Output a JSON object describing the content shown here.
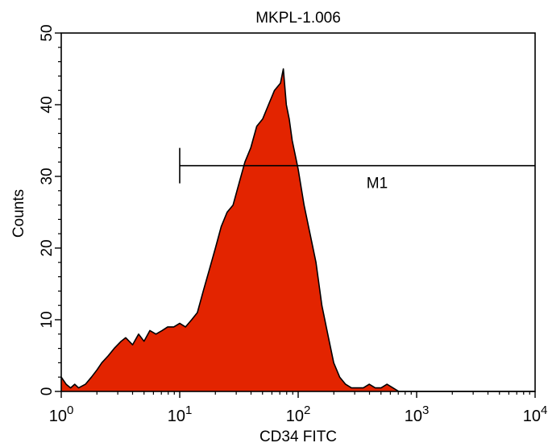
{
  "chart_data": {
    "type": "histogram",
    "title": "MKPL-1.006",
    "xlabel": "CD34 FITC",
    "ylabel": "Counts",
    "x_scale": "log",
    "xlim": [
      1,
      10000
    ],
    "ylim": [
      0,
      50
    ],
    "grid": false,
    "fill_color": "#e32400",
    "outline_color": "#000000",
    "x_tick_labels": [
      {
        "base": "10",
        "exp": "0"
      },
      {
        "base": "10",
        "exp": "1"
      },
      {
        "base": "10",
        "exp": "2"
      },
      {
        "base": "10",
        "exp": "3"
      },
      {
        "base": "10",
        "exp": "4"
      }
    ],
    "y_ticks": [
      0,
      10,
      20,
      30,
      40,
      50
    ],
    "y_tick_labels": [
      "0",
      "10",
      "20",
      "30",
      "40",
      "50"
    ],
    "marker": {
      "label": "M1",
      "x_start": 10,
      "x_end": 10000,
      "y": 31.5
    },
    "series": [
      {
        "x": [
          1.0,
          1.1,
          1.2,
          1.3,
          1.4,
          1.6,
          1.8,
          2.0,
          2.2,
          2.5,
          2.8,
          3.2,
          3.5,
          4.0,
          4.5,
          5.0,
          5.6,
          6.3,
          7.1,
          7.9,
          8.9,
          10.0,
          11.2,
          12.6,
          14.1,
          15.8,
          17.8,
          20.0,
          22.4,
          25.1,
          28.2,
          31.6,
          35.5,
          39.8,
          44.7,
          50.1,
          56.2,
          63.1,
          70.8,
          75.0,
          79.4,
          84.0,
          89.1,
          100.0,
          112.2,
          125.9,
          141.3,
          158.5,
          177.8,
          199.5,
          223.9,
          251.2,
          281.8,
          316.2,
          354.8,
          398.1,
          446.7,
          501.2,
          562.3,
          631.0,
          707.9,
          794.3,
          891.3,
          1000.0,
          10000.0
        ],
        "y": [
          2,
          1,
          0.5,
          1,
          0.5,
          1,
          2,
          3,
          4,
          5,
          6,
          7,
          7.5,
          6.5,
          8,
          7,
          8.5,
          8,
          8.5,
          9,
          9,
          9.5,
          9,
          10,
          11,
          14,
          17,
          20,
          23,
          25,
          26,
          29,
          32,
          34,
          37,
          38,
          40,
          42,
          43,
          45,
          40,
          38,
          35,
          31,
          26,
          22,
          18,
          12,
          8,
          4,
          2,
          1,
          0.5,
          0.5,
          0.5,
          1,
          0.5,
          0.5,
          1,
          0.5,
          0,
          0,
          0,
          0,
          0
        ]
      }
    ]
  }
}
